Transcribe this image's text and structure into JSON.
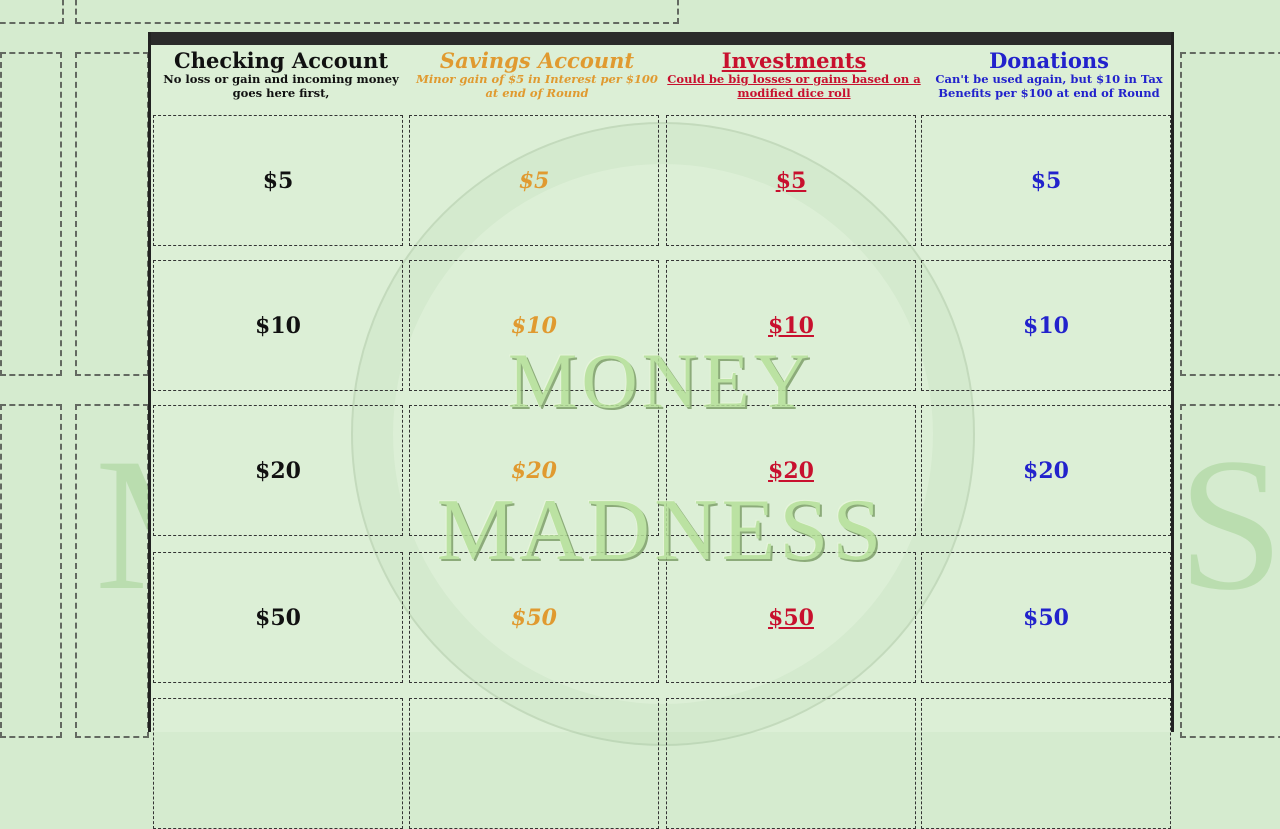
{
  "watermark": {
    "line1": "MONEY",
    "line2": "MADNESS"
  },
  "columns": [
    {
      "title": "Checking Account",
      "subtitle": "No loss or gain and incoming money goes here first,",
      "color": "#111111",
      "values": [
        "$5",
        "$10",
        "$20",
        "$50"
      ]
    },
    {
      "title": "Savings Account",
      "subtitle": "Minor gain of $5 in Interest per $100 at end of Round",
      "color": "#e09a30",
      "values": [
        "$5",
        "$10",
        "$20",
        "$50"
      ]
    },
    {
      "title": "Investments",
      "subtitle": "Could be big losses or gains based on a modified dice roll",
      "color": "#c8102e",
      "values": [
        "$5",
        "$10",
        "$20",
        "$50"
      ]
    },
    {
      "title": "Donations",
      "subtitle": "Can't be used again, but $10 in Tax Benefits per $100 at end of Round",
      "color": "#2222cc",
      "values": [
        "$5",
        "$10",
        "$20",
        "$50"
      ]
    }
  ]
}
